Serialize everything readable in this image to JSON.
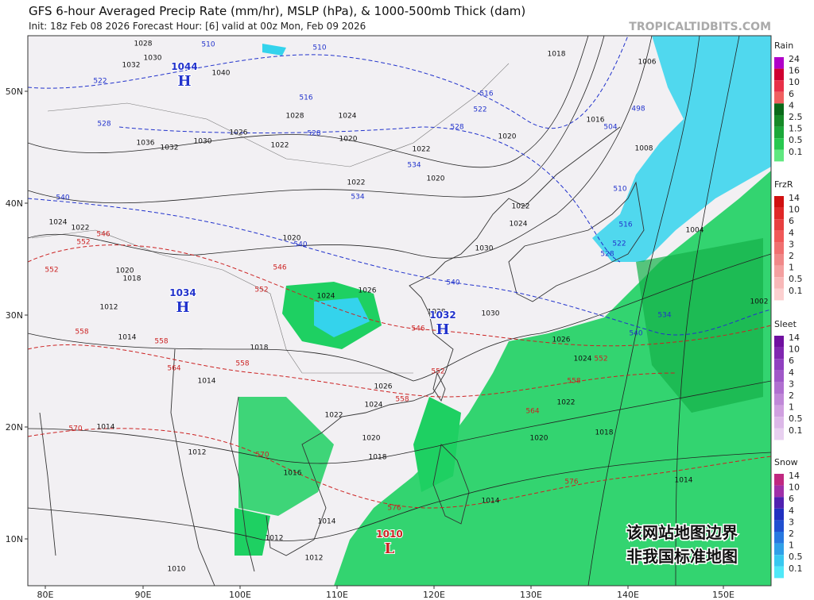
{
  "header": {
    "title": "GFS 6-hour Averaged Precip Rate (mm/hr), MSLP (hPa), & 1000-500mb Thick (dam)",
    "subtitle": "Init: 18z Feb 08 2026   Forecast Hour: [6]   valid at 00z Mon, Feb 09 2026",
    "watermark": "TROPICALTIDBITS.COM"
  },
  "axes": {
    "longitudes": [
      "80E",
      "90E",
      "100E",
      "110E",
      "120E",
      "130E",
      "140E",
      "150E"
    ],
    "latitudes": [
      "50N",
      "40N",
      "30N",
      "20N",
      "10N"
    ]
  },
  "legend": [
    {
      "title": "Rain",
      "levels": [
        "24",
        "16",
        "10",
        "6",
        "4",
        "2.5",
        "1.5",
        "0.5",
        "0.1"
      ]
    },
    {
      "title": "FrzR",
      "levels": [
        "14",
        "10",
        "6",
        "4",
        "3",
        "2",
        "1",
        "0.5",
        "0.1"
      ]
    },
    {
      "title": "Sleet",
      "levels": [
        "14",
        "10",
        "6",
        "4",
        "3",
        "2",
        "1",
        "0.5",
        "0.1"
      ]
    },
    {
      "title": "Snow",
      "levels": [
        "14",
        "10",
        "6",
        "4",
        "3",
        "2",
        "1",
        "0.5",
        "0.1"
      ]
    }
  ],
  "pressure_centers": [
    {
      "label": "1044",
      "symbol": "H"
    },
    {
      "label": "1034",
      "symbol": "H"
    },
    {
      "label": "1032",
      "symbol": "H"
    },
    {
      "label": "1010",
      "symbol": "L"
    }
  ],
  "contour_labels": [
    "1032",
    "1030",
    "1028",
    "1040",
    "1036",
    "1032",
    "1030",
    "1026",
    "1022",
    "1020",
    "1024",
    "1028",
    "1022",
    "1020",
    "1022",
    "1024",
    "1022",
    "1020",
    "1018",
    "1012",
    "1014",
    "1020",
    "1024",
    "1026",
    "1028",
    "1030",
    "1030",
    "1024",
    "1022",
    "1020",
    "1018",
    "1016",
    "1006",
    "1008",
    "1004",
    "1002",
    "1026",
    "1024",
    "1022",
    "1018",
    "1020",
    "1014",
    "1014",
    "1026",
    "1024",
    "1022",
    "1020",
    "1018",
    "1016",
    "1014",
    "1012",
    "1012",
    "1012",
    "1014",
    "1014",
    "1018",
    "1010",
    "510",
    "510",
    "516",
    "516",
    "522",
    "522",
    "528",
    "528",
    "528",
    "534",
    "534",
    "540",
    "540",
    "540",
    "540",
    "534",
    "528",
    "522",
    "516",
    "510",
    "504",
    "498",
    "546",
    "546",
    "546",
    "552",
    "552",
    "552",
    "552",
    "558",
    "558",
    "558",
    "558",
    "564",
    "564",
    "570",
    "570",
    "576",
    "576",
    "552",
    "558"
  ],
  "notice": [
    "该网站地图边界",
    "非我国标准地图"
  ]
}
